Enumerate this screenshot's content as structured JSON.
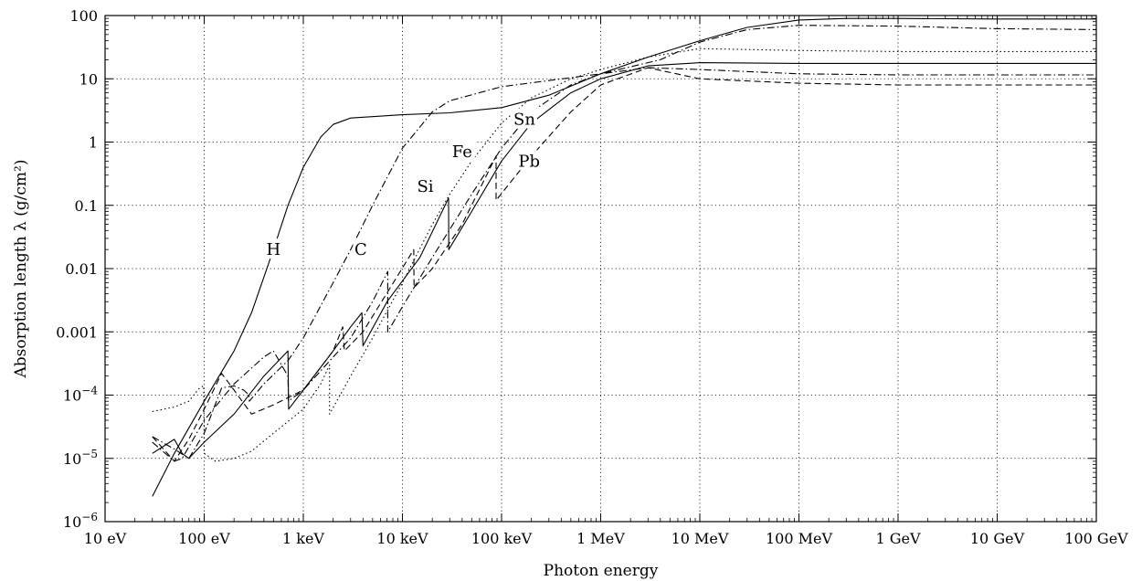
{
  "chart_data": {
    "type": "line",
    "title": "",
    "xlabel": "Photon energy",
    "ylabel": "Absorption length λ  (g/cm²)",
    "xscale": "log",
    "yscale": "log",
    "xlim_eV": [
      10,
      100000000000.0
    ],
    "ylim": [
      1e-06,
      100
    ],
    "grid": true,
    "x_ticks": [
      {
        "value": 10,
        "label": "10 eV"
      },
      {
        "value": 100,
        "label": "100 eV"
      },
      {
        "value": 1000,
        "label": "1 keV"
      },
      {
        "value": 10000,
        "label": "10 keV"
      },
      {
        "value": 100000,
        "label": "100 keV"
      },
      {
        "value": 1000000,
        "label": "1 MeV"
      },
      {
        "value": 10000000,
        "label": "10 MeV"
      },
      {
        "value": 100000000,
        "label": "100 MeV"
      },
      {
        "value": 1000000000,
        "label": "1 GeV"
      },
      {
        "value": 10000000000,
        "label": "10 GeV"
      },
      {
        "value": 100000000000,
        "label": "100 GeV"
      }
    ],
    "y_ticks": [
      {
        "value": 1e-06,
        "mantissa": "10",
        "exp": "−6"
      },
      {
        "value": 1e-05,
        "mantissa": "10",
        "exp": "−5"
      },
      {
        "value": 0.0001,
        "mantissa": "10",
        "exp": "−4"
      },
      {
        "value": 0.001,
        "mantissa": "0.001",
        "exp": ""
      },
      {
        "value": 0.01,
        "mantissa": "0.01",
        "exp": ""
      },
      {
        "value": 0.1,
        "mantissa": "0.1",
        "exp": ""
      },
      {
        "value": 1,
        "mantissa": "1",
        "exp": ""
      },
      {
        "value": 10,
        "mantissa": "10",
        "exp": ""
      },
      {
        "value": 100,
        "mantissa": "100",
        "exp": ""
      }
    ],
    "series": [
      {
        "name": "H",
        "dash": "solid",
        "label_at": [
          500,
          0.02
        ],
        "points": [
          [
            30,
            2.5e-06
          ],
          [
            50,
            1.2e-05
          ],
          [
            100,
            8e-05
          ],
          [
            200,
            0.0005
          ],
          [
            300,
            0.002
          ],
          [
            500,
            0.02
          ],
          [
            700,
            0.1
          ],
          [
            1000,
            0.4
          ],
          [
            1500,
            1.2
          ],
          [
            2000,
            1.9
          ],
          [
            3000,
            2.4
          ],
          [
            10000,
            2.7
          ],
          [
            30000,
            2.9
          ],
          [
            100000,
            3.5
          ],
          [
            300000,
            5.5
          ],
          [
            1000000,
            12
          ],
          [
            3000000,
            22
          ],
          [
            10000000,
            40
          ],
          [
            30000000,
            65
          ],
          [
            100000000,
            85
          ],
          [
            300000000,
            90
          ],
          [
            1000000000,
            90
          ],
          [
            10000000000,
            88
          ],
          [
            100000000000,
            88
          ]
        ]
      },
      {
        "name": "C",
        "dash": "dashdot",
        "label_at": [
          3800,
          0.02
        ],
        "points": [
          [
            30,
            2.2e-05
          ],
          [
            50,
            1.4e-05
          ],
          [
            70,
            1e-05
          ],
          [
            100,
            2.5e-05
          ],
          [
            150,
            0.00013
          ],
          [
            200,
            0.00014
          ],
          [
            250,
            0.00012
          ],
          [
            284,
            0.0001
          ],
          [
            285,
            8e-05
          ],
          [
            400,
            0.00015
          ],
          [
            700,
            0.00035
          ],
          [
            1000,
            0.0008
          ],
          [
            2000,
            0.006
          ],
          [
            3000,
            0.02
          ],
          [
            5000,
            0.1
          ],
          [
            10000,
            0.8
          ],
          [
            20000,
            3.0
          ],
          [
            30000,
            4.5
          ],
          [
            100000,
            7.5
          ],
          [
            1000000,
            12
          ],
          [
            4000000,
            20
          ],
          [
            10000000,
            38
          ],
          [
            30000000,
            60
          ],
          [
            100000000,
            70
          ],
          [
            1000000000,
            68
          ],
          [
            10000000000,
            62
          ],
          [
            100000000000,
            60
          ]
        ]
      },
      {
        "name": "Si",
        "dash": "dotted",
        "label_at": [
          17000,
          0.2
        ],
        "points": [
          [
            30,
            5.5e-05
          ],
          [
            50,
            6.5e-05
          ],
          [
            70,
            8e-05
          ],
          [
            90,
            0.00013
          ],
          [
            99,
            0.00014
          ],
          [
            100,
            1.2e-05
          ],
          [
            130,
            9e-06
          ],
          [
            200,
            1e-05
          ],
          [
            300,
            1.3e-05
          ],
          [
            500,
            2.5e-05
          ],
          [
            1000,
            6e-05
          ],
          [
            1500,
            0.00015
          ],
          [
            1839,
            0.0003
          ],
          [
            1840,
            5e-05
          ],
          [
            3000,
            0.0002
          ],
          [
            5000,
            0.0008
          ],
          [
            10000,
            0.006
          ],
          [
            20000,
            0.05
          ],
          [
            30000,
            0.15
          ],
          [
            50000,
            0.5
          ],
          [
            100000,
            2
          ],
          [
            200000,
            5
          ],
          [
            500000,
            10
          ],
          [
            1000000,
            14
          ],
          [
            3000000,
            22
          ],
          [
            10000000,
            30
          ],
          [
            100000000,
            28
          ],
          [
            1000000000,
            27
          ],
          [
            100000000000,
            27
          ]
        ]
      },
      {
        "name": "Fe",
        "dash": "dashdot",
        "label_at": [
          40000,
          0.7
        ],
        "points": [
          [
            30,
            1.8e-05
          ],
          [
            50,
            9e-06
          ],
          [
            60,
            1e-05
          ],
          [
            100,
            4e-05
          ],
          [
            200,
            0.00015
          ],
          [
            400,
            0.0004
          ],
          [
            500,
            0.0005
          ],
          [
            700,
            0.0002
          ],
          [
            708,
            8e-05
          ],
          [
            1000,
            0.00012
          ],
          [
            2000,
            0.0004
          ],
          [
            3000,
            0.0008
          ],
          [
            5000,
            0.003
          ],
          [
            7100,
            0.009
          ],
          [
            7112,
            0.001
          ],
          [
            10000,
            0.0025
          ],
          [
            20000,
            0.015
          ],
          [
            50000,
            0.15
          ],
          [
            100000,
            0.8
          ],
          [
            200000,
            3
          ],
          [
            500000,
            8
          ],
          [
            1000000,
            12
          ],
          [
            3000000,
            15
          ],
          [
            10000000,
            14
          ],
          [
            100000000,
            12
          ],
          [
            1000000000,
            11.5
          ],
          [
            100000000000,
            11.5
          ]
        ]
      },
      {
        "name": "Sn",
        "dash": "solid",
        "label_at": [
          170000,
          2.3
        ],
        "points": [
          [
            30,
            1.2e-05
          ],
          [
            50,
            2e-05
          ],
          [
            60,
            1.2e-05
          ],
          [
            70,
            1e-05
          ],
          [
            100,
            1.8e-05
          ],
          [
            200,
            5e-05
          ],
          [
            400,
            0.0002
          ],
          [
            700,
            0.0005
          ],
          [
            710,
            6e-05
          ],
          [
            1000,
            0.00012
          ],
          [
            2000,
            0.0005
          ],
          [
            3000,
            0.0012
          ],
          [
            3900,
            0.002
          ],
          [
            4000,
            0.0006
          ],
          [
            7000,
            0.003
          ],
          [
            15000,
            0.015
          ],
          [
            29200,
            0.13
          ],
          [
            29300,
            0.02
          ],
          [
            50000,
            0.08
          ],
          [
            100000,
            0.5
          ],
          [
            200000,
            2.0
          ],
          [
            500000,
            6
          ],
          [
            1000000,
            10
          ],
          [
            3000000,
            16
          ],
          [
            10000000,
            18
          ],
          [
            100000000,
            17.5
          ],
          [
            1000000000,
            17.5
          ],
          [
            100000000000,
            17.5
          ]
        ]
      },
      {
        "name": "Pb",
        "dash": "dashed",
        "label_at": [
          190000,
          0.5
        ],
        "points": [
          [
            30,
            2.2e-05
          ],
          [
            50,
            9e-06
          ],
          [
            70,
            2e-05
          ],
          [
            100,
            6e-05
          ],
          [
            150,
            0.00022
          ],
          [
            200,
            0.00012
          ],
          [
            300,
            5e-05
          ],
          [
            500,
            7e-05
          ],
          [
            1000,
            0.00012
          ],
          [
            2000,
            0.0005
          ],
          [
            2500,
            0.0012
          ],
          [
            2600,
            0.0005
          ],
          [
            4000,
            0.001
          ],
          [
            13000,
            0.02
          ],
          [
            13100,
            0.005
          ],
          [
            20000,
            0.01
          ],
          [
            40000,
            0.05
          ],
          [
            88000,
            0.6
          ],
          [
            88100,
            0.12
          ],
          [
            200000,
            0.6
          ],
          [
            500000,
            3
          ],
          [
            1000000,
            8
          ],
          [
            3000000,
            15
          ],
          [
            10000000,
            10
          ],
          [
            100000000,
            8.5
          ],
          [
            1000000000,
            8
          ],
          [
            100000000000,
            8
          ]
        ]
      }
    ]
  }
}
